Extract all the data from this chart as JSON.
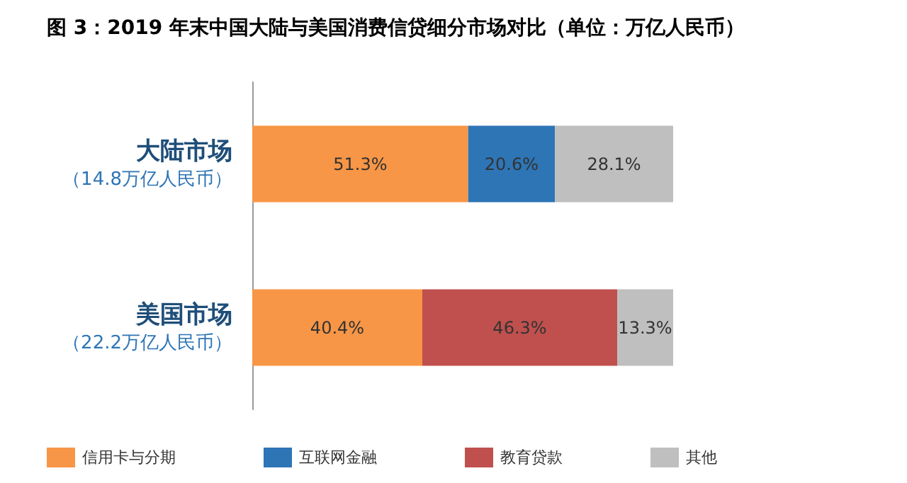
{
  "chart_data": {
    "type": "bar",
    "title": "图 3：2019 年末中国大陆与美国消费信贷细分市场对比（单位：万亿人民币）",
    "orientation": "horizontal",
    "stacked": true,
    "categories": [
      "大陆市场（14.8万亿人民币）",
      "美国市场（22.2万亿人民币）"
    ],
    "series": [
      {
        "name": "信用卡与分期",
        "color": "#f79646",
        "values": [
          51.3,
          40.4
        ],
        "value_labels": [
          "51.3%",
          "40.4%"
        ]
      },
      {
        "name": "互联网金融",
        "color": "#2e75b6",
        "values": [
          20.6,
          null
        ],
        "value_labels": [
          "20.6%",
          null
        ]
      },
      {
        "name": "教育贷款",
        "color": "#c0504d",
        "values": [
          null,
          46.3
        ],
        "value_labels": [
          null,
          "46.3%"
        ]
      },
      {
        "name": "其他",
        "color": "#bfbfbf",
        "values": [
          28.1,
          13.3
        ],
        "value_labels": [
          "28.1%",
          "13.3%"
        ]
      }
    ],
    "xlim": [
      0,
      100
    ],
    "tick_labels": "y",
    "legend": "bottom"
  }
}
